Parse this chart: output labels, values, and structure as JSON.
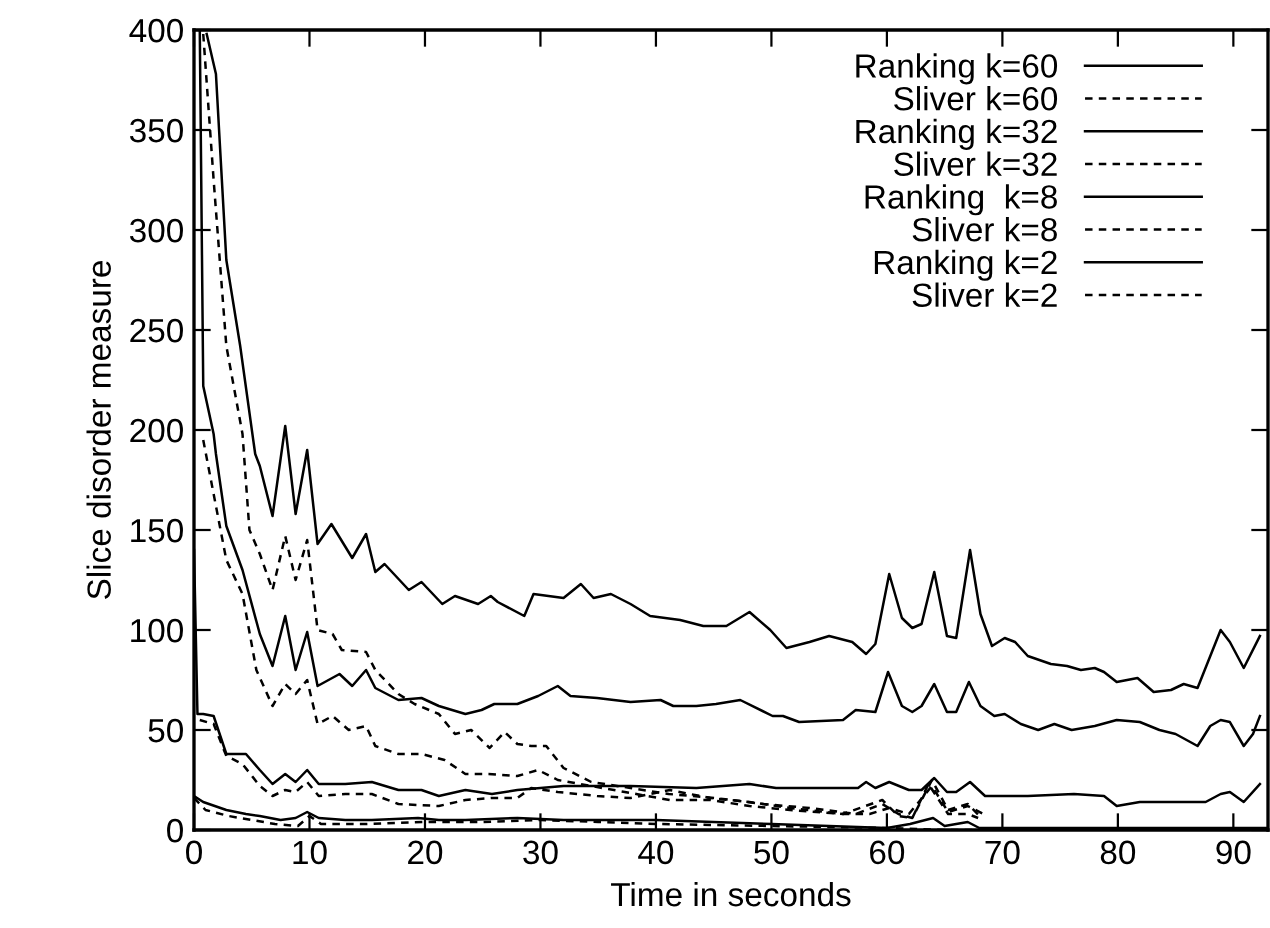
{
  "chart_data": {
    "type": "line",
    "xlabel": "Time in seconds",
    "ylabel": "Slice disorder measure",
    "xlim": [
      0,
      93
    ],
    "ylim": [
      0,
      400
    ],
    "xticks": [
      0,
      10,
      20,
      30,
      40,
      50,
      60,
      70,
      80,
      90
    ],
    "yticks": [
      0,
      50,
      100,
      150,
      200,
      250,
      300,
      350,
      400
    ],
    "grid": false,
    "legend": "top right",
    "marker": "none",
    "series": [
      {
        "name": "Ranking k=60",
        "color": "#000000",
        "line_style": "solid",
        "x": [
          1.1,
          1.9,
          2.8,
          4.0,
          5.3,
          5.7,
          6.8,
          7.9,
          8.8,
          9.8,
          10.7,
          11.9,
          13.7,
          14.9,
          15.7,
          16.5,
          18.6,
          19.7,
          21.5,
          22.6,
          24.6,
          25.7,
          26.3,
          28.6,
          29.4,
          32,
          33.5,
          34.6,
          36.1,
          37.8,
          39.5,
          42.1,
          44.1,
          46.1,
          48.1,
          49.9,
          51.3,
          53.3,
          55,
          57,
          58.2,
          59,
          60.2,
          61.3,
          62.2,
          63,
          64.1,
          65.2,
          66,
          67.2,
          68.1,
          69.1,
          70.2,
          71.1,
          72.2,
          74.2,
          75.6,
          76.8,
          78,
          78.8,
          79.9,
          81.7,
          83.1,
          84.6,
          85.7,
          86.9,
          88.9,
          89.7,
          90.9,
          92.3
        ],
        "values": [
          398,
          378,
          285,
          242,
          188,
          182,
          157,
          202,
          158,
          190,
          143,
          153,
          136,
          148,
          129,
          133,
          120,
          124,
          113,
          117,
          113,
          117,
          114,
          107,
          118,
          116,
          123,
          116,
          118,
          113,
          107,
          105,
          102,
          102,
          109,
          100,
          91,
          94,
          97,
          94,
          88,
          93,
          128,
          106,
          101,
          103,
          129,
          97,
          96,
          140,
          108,
          92,
          96,
          94,
          87,
          83,
          82,
          80,
          81,
          79,
          74,
          76,
          69,
          70,
          73,
          71,
          100,
          94,
          81,
          97
        ]
      },
      {
        "name": "Sliver k=60",
        "color": "#000000",
        "line_style": "dashed",
        "x": [
          0.8,
          1.7,
          2.8,
          4.2,
          4.8,
          5.7,
          6.8,
          7.9,
          8.8,
          9.8,
          10.7,
          12,
          12.8,
          14.9,
          15.7,
          17.7,
          19.1,
          21.2,
          22.6,
          24,
          25.6,
          26.9,
          28,
          29.2,
          30.5,
          32,
          34.4,
          37.8,
          41.1,
          45.1,
          49.3,
          53.3,
          57.3,
          59.6,
          61,
          62.2,
          63.9,
          65.3,
          67,
          68.2
        ],
        "values": [
          398,
          325,
          242,
          198,
          150,
          138,
          120,
          147,
          125,
          145,
          100,
          98,
          90,
          89,
          80,
          68,
          63,
          58,
          48,
          50,
          41,
          49,
          43,
          42,
          42,
          31,
          24,
          21,
          18,
          16,
          13,
          11,
          8,
          13,
          8,
          6,
          25,
          10,
          13,
          6
        ]
      },
      {
        "name": "Ranking k=32",
        "color": "#000000",
        "line_style": "solid",
        "x": [
          0.5,
          0.8,
          1.7,
          1.9,
          2.8,
          4.2,
          5.7,
          6.8,
          7.9,
          8.8,
          9.8,
          10.7,
          12.6,
          13.7,
          14.9,
          15.7,
          17.7,
          19.7,
          21.2,
          23.5,
          24.9,
          26,
          28,
          29.8,
          31.5,
          32.6,
          34.9,
          37.8,
          40.4,
          41.5,
          43.5,
          45.2,
          47.3,
          50.1,
          51,
          52.4,
          56.2,
          57.3,
          59,
          60.1,
          61.3,
          62.2,
          63,
          64.1,
          65.2,
          66,
          67.1,
          68.1,
          69.3,
          70.2,
          71.6,
          73.1,
          74.5,
          76,
          78,
          79.9,
          81.9,
          83.6,
          85,
          86.9,
          88,
          88.9,
          89.7,
          90.9,
          91.7,
          92.3
        ],
        "values": [
          400,
          222,
          198,
          188,
          152,
          130,
          98,
          82,
          107,
          80,
          99,
          72,
          78,
          72,
          80,
          71,
          65,
          66,
          62,
          58,
          60,
          63,
          63,
          67,
          72,
          67,
          66,
          64,
          65,
          62,
          62,
          63,
          65,
          57,
          57,
          54,
          55,
          60,
          59,
          79,
          62,
          59,
          62,
          73,
          59,
          59,
          74,
          62,
          57,
          58,
          53,
          50,
          53,
          50,
          52,
          55,
          54,
          50,
          48,
          42,
          52,
          55,
          54,
          42,
          48,
          57
        ]
      },
      {
        "name": "Sliver k=32",
        "color": "#000000",
        "line_style": "dashed",
        "x": [
          0.8,
          1.9,
          2.8,
          4.2,
          5.4,
          6.8,
          7.9,
          8.8,
          9.8,
          10.7,
          12,
          13.4,
          14.9,
          15.7,
          17.7,
          19.7,
          21.7,
          23.5,
          25.5,
          28,
          29.8,
          31.5,
          34.4,
          37.3,
          41.2,
          44.7,
          48.1,
          51.6,
          56.2,
          59.6,
          61,
          62.2,
          63.6,
          65.3,
          67,
          67.9
        ],
        "values": [
          195,
          162,
          135,
          118,
          80,
          62,
          73,
          68,
          75,
          53,
          57,
          50,
          52,
          42,
          38,
          38,
          35,
          28,
          28,
          27,
          30,
          25,
          22,
          19,
          15,
          15,
          12,
          10,
          8,
          15,
          7,
          6,
          23,
          8,
          8,
          6
        ]
      },
      {
        "name": "Ranking  k=8",
        "color": "#000000",
        "line_style": "solid",
        "x": [
          0,
          0.3,
          0.8,
          1.7,
          2.8,
          4.5,
          5.7,
          6.8,
          7.9,
          8.8,
          9.8,
          10.8,
          13.1,
          15.4,
          17.7,
          19.7,
          21.2,
          23.5,
          25.8,
          28,
          32,
          37.8,
          43.5,
          48.1,
          50.4,
          57.5,
          58.2,
          59,
          60.2,
          61.9,
          63,
          64.1,
          65.2,
          66,
          67.2,
          68.5,
          72.2,
          76.2,
          78.8,
          79.9,
          81.9,
          87.6,
          88.9,
          89.7,
          90.9,
          92.3
        ],
        "values": [
          140,
          58,
          58,
          57,
          38,
          38,
          30,
          23,
          28,
          24,
          30,
          23,
          23,
          24,
          20,
          20,
          17,
          20,
          18,
          20,
          22,
          22,
          21,
          23,
          21,
          21,
          24,
          21,
          24,
          20,
          20,
          26,
          19,
          19,
          24,
          17,
          17,
          18,
          17,
          12,
          14,
          14,
          18,
          19,
          14,
          23
        ]
      },
      {
        "name": "Sliver k=8",
        "color": "#000000",
        "line_style": "dashed",
        "x": [
          0.5,
          1.7,
          2.8,
          4.2,
          5.7,
          6.8,
          7.9,
          8.8,
          9.8,
          10.8,
          13.1,
          15.4,
          17.7,
          21.2,
          23.5,
          25.8,
          28,
          29.2,
          31.5,
          34.9,
          37.8,
          41.2,
          44.7,
          48.1,
          51.6,
          56.2,
          58.5,
          60.2,
          61.9,
          63.9,
          65.3,
          67,
          68.7
        ],
        "values": [
          55,
          53,
          37,
          33,
          22,
          17,
          20,
          19,
          24,
          17,
          18,
          18,
          13,
          12,
          15,
          16,
          16,
          21,
          19,
          17,
          16,
          20,
          16,
          14,
          11,
          8,
          8,
          11,
          8,
          22,
          9,
          12,
          7
        ]
      },
      {
        "name": "Ranking k=2",
        "color": "#000000",
        "line_style": "solid",
        "x": [
          0,
          0.8,
          2.8,
          4.5,
          5.7,
          7.5,
          8.8,
          9.8,
          10.8,
          13.1,
          15.4,
          19.4,
          21.2,
          23.5,
          28,
          32,
          37.8,
          40,
          50,
          55,
          60,
          62,
          64,
          65,
          67,
          68,
          75,
          93
        ],
        "values": [
          17,
          14,
          10,
          8,
          7,
          5,
          6,
          9,
          6,
          5,
          5,
          6,
          5,
          5,
          6,
          5,
          5,
          5,
          3,
          2,
          1,
          3,
          6,
          2,
          4,
          1,
          1,
          1
        ]
      },
      {
        "name": "Sliver k=2",
        "color": "#000000",
        "line_style": "dashed",
        "x": [
          0,
          1,
          3,
          5,
          7,
          9,
          10,
          11,
          15,
          20,
          25,
          30,
          35,
          40,
          50,
          60,
          65,
          68
        ],
        "values": [
          16,
          10,
          7,
          5,
          3,
          2,
          7,
          3,
          3,
          4,
          4,
          5,
          4,
          3,
          2,
          1,
          0,
          0
        ]
      }
    ]
  }
}
